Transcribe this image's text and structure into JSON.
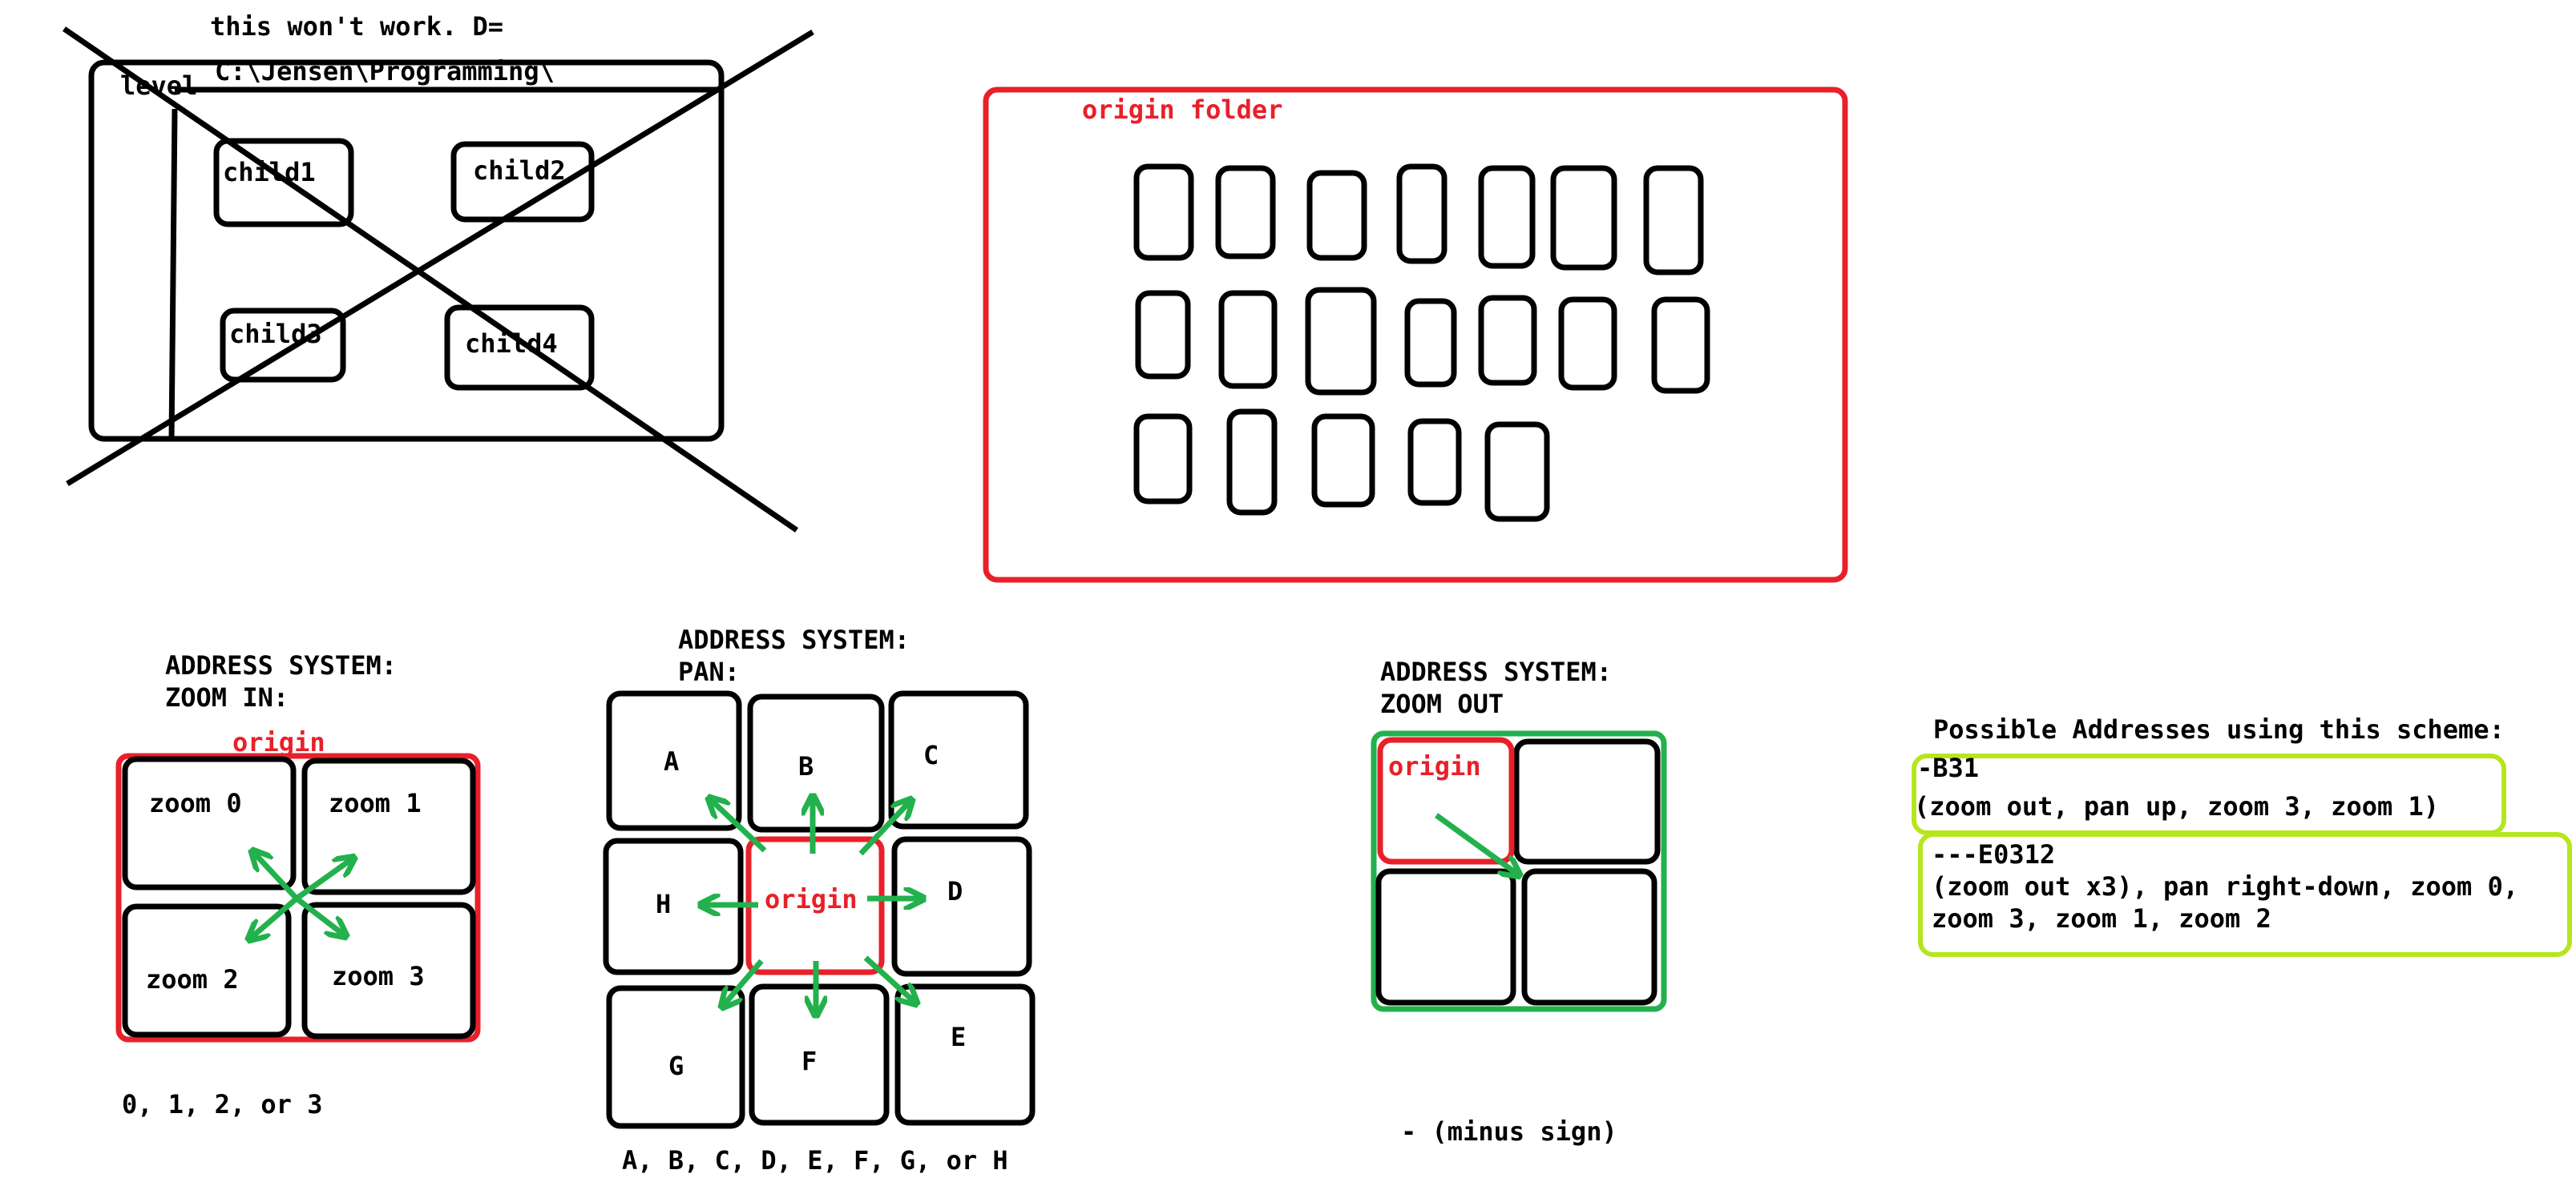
{
  "colors": {
    "ink": "#000000",
    "red": "#e8202a",
    "green": "#22b14c",
    "lime": "#b5e61d",
    "background": "#ffffff"
  },
  "failed_sketch": {
    "note": "this won't work.   D=",
    "path": "C:\\Jensen\\Programming\\",
    "level_label": "level",
    "children": [
      "child1",
      "child2",
      "child3",
      "child4"
    ]
  },
  "origin_folder": {
    "title": "origin folder",
    "row_counts": [
      7,
      7,
      5
    ]
  },
  "zoom_in": {
    "heading_1": "ADDRESS SYSTEM:",
    "heading_2": "ZOOM IN:",
    "origin_label": "origin",
    "cells": [
      "zoom 0",
      "zoom 1",
      "zoom 2",
      "zoom 3"
    ],
    "caption": "0, 1, 2, or 3"
  },
  "pan": {
    "heading_1": "ADDRESS SYSTEM:",
    "heading_2": "PAN:",
    "origin_label": "origin",
    "cells": [
      "A",
      "B",
      "C",
      "D",
      "E",
      "F",
      "G",
      "H"
    ],
    "caption": "A, B, C, D, E, F, G, or H"
  },
  "zoom_out": {
    "heading_1": "ADDRESS SYSTEM:",
    "heading_2": "ZOOM OUT",
    "origin_label": "origin",
    "caption": "- (minus sign)"
  },
  "addresses": {
    "heading": "Possible Addresses using this scheme:",
    "examples": [
      {
        "code": "-B31",
        "lines": [
          "(zoom out, pan up, zoom 3, zoom 1)"
        ]
      },
      {
        "code": "---E0312",
        "lines": [
          "(zoom out x3), pan right-down, zoom 0,",
          "zoom 3, zoom 1, zoom 2"
        ]
      }
    ]
  }
}
